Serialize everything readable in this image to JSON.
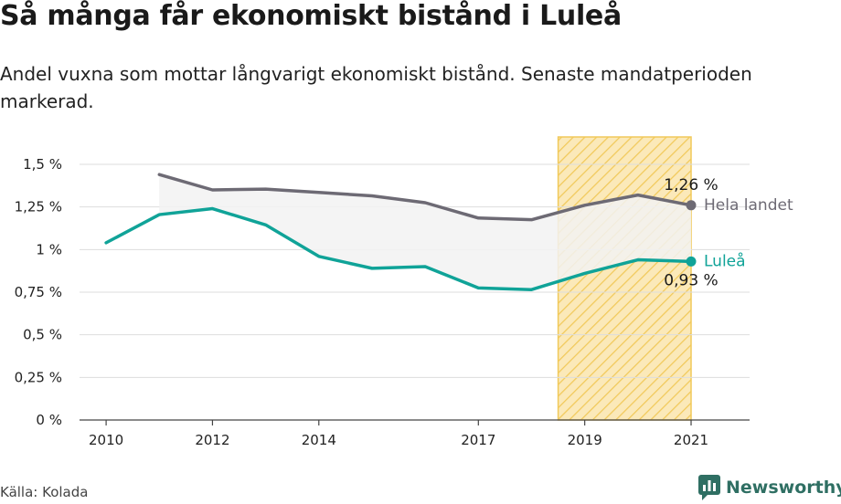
{
  "title": "Så många får ekonomiskt bistånd i Luleå",
  "subtitle": "Andel vuxna som mottar långvarigt ekonomiskt bistånd. Senaste mandatperioden markerad.",
  "source": "Källa: Kolada",
  "logo": {
    "name": "Newsworthy",
    "icon": "chart-bubble-icon"
  },
  "colors": {
    "national": "#6d6a74",
    "lulea": "#10a398",
    "highlight_fill": "#fbe9b9",
    "highlight_stroke": "#f1c95a",
    "grid": "#dddddd",
    "gap_fill": "#f2f2f2"
  },
  "chart_data": {
    "type": "line",
    "x_ticks": [
      2010,
      2012,
      2014,
      2017,
      2019,
      2021
    ],
    "y_ticks": [
      0,
      0.25,
      0.5,
      0.75,
      1,
      1.25,
      1.5
    ],
    "y_tick_labels": [
      "0 %",
      "0,25 %",
      "0,5 %",
      "0,75 %",
      "1 %",
      "1,25 %",
      "1,5 %"
    ],
    "xlim": [
      2009.5,
      2022.1
    ],
    "ylim": [
      0,
      1.5
    ],
    "highlight_period": [
      2018.5,
      2021
    ],
    "series": [
      {
        "name": "Hela landet",
        "color_key": "national",
        "end_label": "1,26 %",
        "points": [
          [
            2011,
            1.44
          ],
          [
            2012,
            1.35
          ],
          [
            2013,
            1.355
          ],
          [
            2014,
            1.335
          ],
          [
            2015,
            1.315
          ],
          [
            2016,
            1.275
          ],
          [
            2017,
            1.185
          ],
          [
            2018,
            1.175
          ],
          [
            2019,
            1.26
          ],
          [
            2020,
            1.32
          ],
          [
            2021,
            1.26
          ]
        ]
      },
      {
        "name": "Luleå",
        "color_key": "lulea",
        "end_label": "0,93 %",
        "points": [
          [
            2010,
            1.04
          ],
          [
            2011,
            1.205
          ],
          [
            2012,
            1.24
          ],
          [
            2013,
            1.145
          ],
          [
            2014,
            0.96
          ],
          [
            2015,
            0.89
          ],
          [
            2016,
            0.9
          ],
          [
            2017,
            0.775
          ],
          [
            2018,
            0.765
          ],
          [
            2019,
            0.86
          ],
          [
            2020,
            0.94
          ],
          [
            2021,
            0.93
          ]
        ]
      }
    ]
  }
}
